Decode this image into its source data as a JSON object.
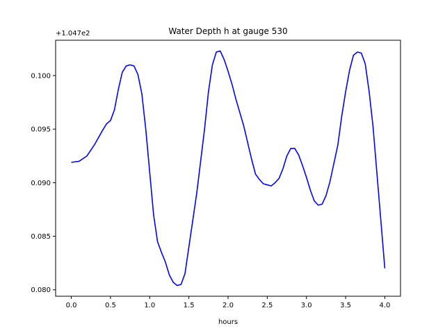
{
  "chart_data": {
    "type": "line",
    "title": "Water Depth h at gauge 530",
    "xlabel": "hours",
    "ylabel": "",
    "offset_text": "+1.047e2",
    "xlim": [
      -0.2,
      4.2
    ],
    "ylim": [
      0.0794,
      0.1033
    ],
    "x_ticks": [
      0.0,
      0.5,
      1.0,
      1.5,
      2.0,
      2.5,
      3.0,
      3.5,
      4.0
    ],
    "x_tick_labels": [
      "0.0",
      "0.5",
      "1.0",
      "1.5",
      "2.0",
      "2.5",
      "3.0",
      "3.5",
      "4.0"
    ],
    "y_ticks": [
      0.08,
      0.085,
      0.09,
      0.095,
      0.1
    ],
    "y_tick_labels": [
      "0.080",
      "0.085",
      "0.090",
      "0.095",
      "0.100"
    ],
    "grid": false,
    "legend": "none",
    "series": [
      {
        "color": "#0000ff",
        "x": [
          0.0,
          0.1,
          0.2,
          0.3,
          0.4,
          0.45,
          0.5,
          0.55,
          0.6,
          0.65,
          0.7,
          0.75,
          0.8,
          0.85,
          0.9,
          0.95,
          1.0,
          1.05,
          1.1,
          1.15,
          1.2,
          1.25,
          1.3,
          1.35,
          1.4,
          1.45,
          1.5,
          1.6,
          1.7,
          1.75,
          1.8,
          1.85,
          1.9,
          1.95,
          2.0,
          2.05,
          2.1,
          2.2,
          2.3,
          2.35,
          2.4,
          2.45,
          2.5,
          2.55,
          2.6,
          2.65,
          2.7,
          2.75,
          2.8,
          2.85,
          2.9,
          2.95,
          3.0,
          3.05,
          3.1,
          3.15,
          3.2,
          3.25,
          3.3,
          3.4,
          3.45,
          3.5,
          3.55,
          3.6,
          3.65,
          3.7,
          3.75,
          3.8,
          3.85,
          3.9,
          3.95,
          4.0
        ],
        "y": [
          0.0919,
          0.092,
          0.0925,
          0.0936,
          0.0949,
          0.0955,
          0.0958,
          0.0968,
          0.0987,
          0.1003,
          0.1009,
          0.101,
          0.1009,
          0.1001,
          0.0983,
          0.095,
          0.091,
          0.087,
          0.0845,
          0.0835,
          0.0826,
          0.0814,
          0.0807,
          0.0804,
          0.0805,
          0.0815,
          0.084,
          0.089,
          0.095,
          0.0985,
          0.101,
          0.1022,
          0.1023,
          0.1015,
          0.1004,
          0.0992,
          0.0978,
          0.0953,
          0.0922,
          0.0908,
          0.0903,
          0.0899,
          0.0898,
          0.0897,
          0.09,
          0.0904,
          0.0913,
          0.0925,
          0.0932,
          0.0932,
          0.0926,
          0.0916,
          0.0905,
          0.0893,
          0.0883,
          0.0879,
          0.088,
          0.0888,
          0.0901,
          0.0935,
          0.0962,
          0.0985,
          0.1005,
          0.1019,
          0.1022,
          0.1021,
          0.1011,
          0.0985,
          0.0952,
          0.0908,
          0.0864,
          0.082
        ]
      }
    ]
  }
}
